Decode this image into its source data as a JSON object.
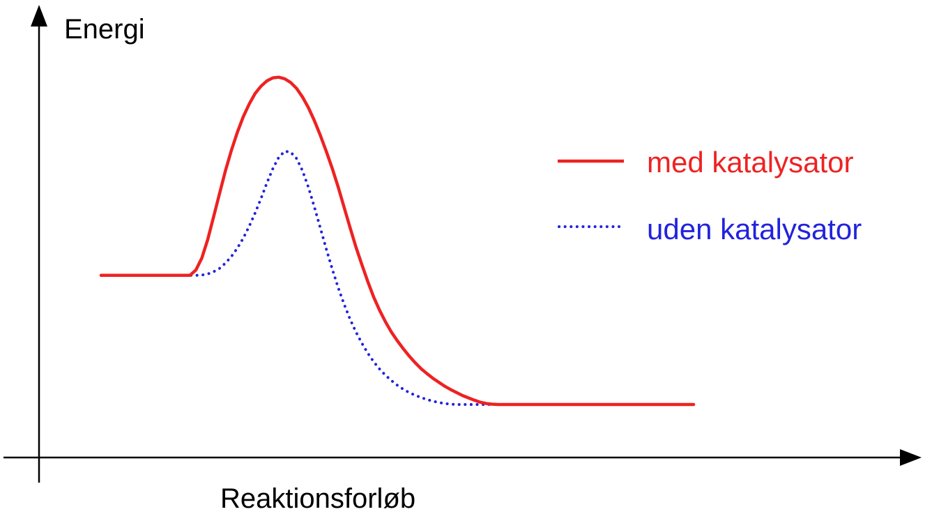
{
  "chart_data": {
    "type": "line",
    "xlabel": "Reaktionsforløb",
    "ylabel": "Energi",
    "legend_position": "right",
    "grid": false,
    "xlim": [
      0,
      100
    ],
    "ylim": [
      0,
      100
    ],
    "series": [
      {
        "name": "med katalysator",
        "color": "#ee2222",
        "style": "solid",
        "x": [
          0,
          8,
          15,
          16,
          17,
          18,
          19,
          20,
          21,
          22,
          23,
          24,
          25,
          26,
          27,
          28,
          29,
          30,
          31,
          32,
          33,
          34,
          35,
          36,
          37,
          38,
          39,
          40,
          41,
          42,
          43,
          44,
          45,
          46,
          47,
          48,
          49,
          50,
          51,
          52,
          53,
          54,
          55,
          56,
          57,
          58,
          59,
          60,
          61,
          62,
          63,
          64,
          65,
          66,
          67,
          68,
          69,
          70,
          71,
          72,
          73,
          74,
          75,
          80,
          90,
          100
        ],
        "y": [
          38.9,
          38.9,
          38.9,
          40.5,
          44.1,
          49.7,
          56.6,
          63.6,
          70.5,
          76.6,
          82.0,
          86.7,
          90.5,
          93.7,
          95.9,
          97.5,
          98.4,
          98.6,
          98.1,
          97.0,
          95.2,
          92.6,
          89.4,
          85.5,
          81.1,
          76.3,
          71.2,
          65.6,
          59.5,
          53.4,
          47.5,
          42.2,
          37.1,
          32.4,
          28.4,
          24.9,
          21.8,
          19.2,
          16.8,
          14.6,
          12.6,
          10.8,
          9.3,
          7.9,
          6.7,
          5.5,
          4.5,
          3.6,
          2.7,
          2.0,
          1.3,
          0.7,
          0.3,
          0.1,
          0,
          0,
          0,
          0,
          0,
          0,
          0,
          0,
          0,
          0,
          0,
          0
        ]
      },
      {
        "name": "uden katalysator",
        "color": "#2222dd",
        "style": "dotted",
        "x": [
          0,
          8,
          15,
          16,
          17,
          18,
          19,
          20,
          21,
          22,
          23,
          24,
          25,
          26,
          27,
          28,
          29,
          30,
          31,
          32,
          33,
          34,
          35,
          36,
          37,
          38,
          39,
          40,
          41,
          42,
          43,
          44,
          45,
          46,
          47,
          48,
          49,
          50,
          51,
          52,
          53,
          54,
          55,
          56,
          57,
          58,
          59,
          60,
          61,
          62,
          63,
          64,
          65,
          66,
          67,
          68,
          69,
          70,
          71,
          72,
          73,
          74,
          75,
          80,
          90,
          100
        ],
        "y": [
          38.9,
          38.9,
          38.9,
          38.9,
          39.0,
          39.3,
          40.0,
          41.0,
          42.6,
          44.6,
          47.1,
          50.1,
          53.7,
          57.7,
          62.1,
          66.8,
          71.1,
          74.5,
          76.3,
          76.0,
          74.1,
          70.4,
          65.4,
          59.5,
          53.2,
          46.9,
          40.9,
          35.3,
          30.3,
          25.8,
          21.9,
          18.5,
          15.5,
          12.9,
          10.7,
          8.8,
          7.2,
          5.8,
          4.6,
          3.6,
          2.8,
          2.1,
          1.5,
          1.0,
          0.6,
          0.3,
          0.1,
          0,
          0,
          0,
          0,
          0,
          0,
          0,
          0,
          0,
          0,
          0,
          0,
          0,
          0,
          0,
          0,
          0,
          0,
          0
        ]
      }
    ]
  }
}
